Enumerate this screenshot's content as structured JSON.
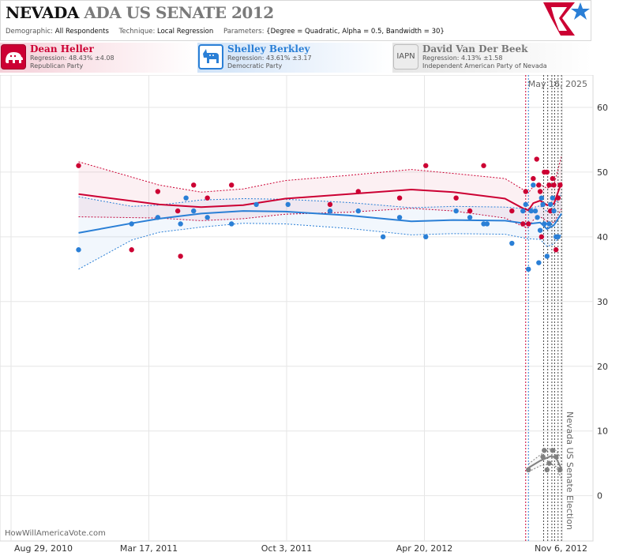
{
  "header": {
    "state": "NEVADA",
    "title_rest": "ADA US SENATE 2012",
    "demographic_label": "Demographic:",
    "demographic": "All Respondents",
    "technique_label": "Technique:",
    "technique": "Local Regression",
    "parameters_label": "Parameters:",
    "parameters": "{Degree = Quadratic, Alpha = 0.5, Bandwidth = 30}"
  },
  "candidates": [
    {
      "name": "Dean Heller",
      "regression": "Regression: 48.43% ±4.08",
      "party": "Republican Party",
      "icon": "elephant-icon",
      "color": "#cc0033"
    },
    {
      "name": "Shelley Berkley",
      "regression": "Regression: 43.61% ±3.17",
      "party": "Democratic Party",
      "icon": "donkey-icon",
      "color": "#2a7fd6"
    },
    {
      "name": "David Van Der Beek",
      "regression": "Regression: 4.13% ±1.58",
      "party": "Independent American Party  of Nevada",
      "icon": "IAPN",
      "color": "#808080"
    }
  ],
  "chart_data": {
    "type": "scatter",
    "date_label": "May 16, 2025",
    "watermark": "HowWillAmericaVote.com",
    "event_label": "Nevada US Senate Election",
    "x_ticks": [
      "Aug 29, 2010",
      "Mar 17, 2011",
      "Oct 3, 2011",
      "Apr 20, 2012",
      "Nov 6, 2012"
    ],
    "xlim": [
      "2010-08-29",
      "2012-11-06"
    ],
    "ylim": [
      -7,
      65
    ],
    "y_ticks": [
      0,
      10,
      20,
      30,
      40,
      50,
      60
    ],
    "grid": true,
    "vertical_markers": [
      "2012-09-14",
      "2012-09-18",
      "2012-10-10",
      "2012-10-16",
      "2012-10-22",
      "2012-10-26",
      "2012-10-31",
      "2012-11-05"
    ],
    "series": [
      {
        "name": "Dean Heller",
        "color": "#cc0033",
        "points": [
          [
            "2010-12-05",
            51
          ],
          [
            "2011-02-20",
            38
          ],
          [
            "2011-03-30",
            47
          ],
          [
            "2011-04-28",
            44
          ],
          [
            "2011-05-02",
            37
          ],
          [
            "2011-05-21",
            48
          ],
          [
            "2011-06-10",
            46
          ],
          [
            "2011-07-15",
            48
          ],
          [
            "2011-12-05",
            45
          ],
          [
            "2012-01-15",
            47
          ],
          [
            "2012-03-15",
            46
          ],
          [
            "2012-04-22",
            51
          ],
          [
            "2012-06-05",
            46
          ],
          [
            "2012-06-25",
            44
          ],
          [
            "2012-07-15",
            51
          ],
          [
            "2012-08-25",
            44
          ],
          [
            "2012-09-10",
            42
          ],
          [
            "2012-09-14",
            47
          ],
          [
            "2012-09-18",
            42
          ],
          [
            "2012-09-25",
            49
          ],
          [
            "2012-09-30",
            52
          ],
          [
            "2012-10-03",
            48
          ],
          [
            "2012-10-05",
            47
          ],
          [
            "2012-10-07",
            40
          ],
          [
            "2012-10-09",
            45
          ],
          [
            "2012-10-11",
            50
          ],
          [
            "2012-10-15",
            50
          ],
          [
            "2012-10-18",
            48
          ],
          [
            "2012-10-20",
            44
          ],
          [
            "2012-10-23",
            49
          ],
          [
            "2012-10-25",
            48
          ],
          [
            "2012-10-28",
            38
          ],
          [
            "2012-10-31",
            46
          ],
          [
            "2012-11-03",
            48
          ]
        ],
        "regression": [
          [
            "2010-12-05",
            46.6
          ],
          [
            "2011-04-01",
            45.0
          ],
          [
            "2011-06-01",
            44.6
          ],
          [
            "2011-08-01",
            44.9
          ],
          [
            "2011-10-01",
            45.9
          ],
          [
            "2012-01-01",
            46.6
          ],
          [
            "2012-04-01",
            47.3
          ],
          [
            "2012-06-01",
            46.9
          ],
          [
            "2012-08-15",
            45.9
          ],
          [
            "2012-09-10",
            44.4
          ],
          [
            "2012-09-18",
            44.1
          ],
          [
            "2012-09-25",
            45.2
          ],
          [
            "2012-10-05",
            45.6
          ],
          [
            "2012-10-15",
            44.9
          ],
          [
            "2012-10-25",
            45.1
          ],
          [
            "2012-11-05",
            48.4
          ]
        ],
        "band_upper": [
          [
            "2010-12-05",
            51.6
          ],
          [
            "2011-04-01",
            48.0
          ],
          [
            "2011-06-01",
            46.9
          ],
          [
            "2011-08-01",
            47.4
          ],
          [
            "2011-10-01",
            48.7
          ],
          [
            "2012-01-01",
            49.5
          ],
          [
            "2012-04-01",
            50.4
          ],
          [
            "2012-06-01",
            49.8
          ],
          [
            "2012-08-15",
            49.0
          ],
          [
            "2012-09-10",
            47.3
          ],
          [
            "2012-09-18",
            46.8
          ],
          [
            "2012-09-25",
            47.8
          ],
          [
            "2012-10-05",
            48.1
          ],
          [
            "2012-10-15",
            47.5
          ],
          [
            "2012-10-25",
            48.0
          ],
          [
            "2012-11-05",
            52.5
          ]
        ],
        "band_lower": [
          [
            "2010-12-05",
            43.1
          ],
          [
            "2011-04-01",
            42.9
          ],
          [
            "2011-06-01",
            42.5
          ],
          [
            "2011-08-01",
            42.8
          ],
          [
            "2011-10-01",
            43.5
          ],
          [
            "2012-01-01",
            43.8
          ],
          [
            "2012-04-01",
            44.4
          ],
          [
            "2012-06-01",
            44.0
          ],
          [
            "2012-08-15",
            42.9
          ],
          [
            "2012-09-10",
            41.6
          ],
          [
            "2012-09-18",
            41.4
          ],
          [
            "2012-09-25",
            42.6
          ],
          [
            "2012-10-05",
            43.1
          ],
          [
            "2012-10-15",
            42.4
          ],
          [
            "2012-10-25",
            42.2
          ],
          [
            "2012-11-05",
            44.3
          ]
        ]
      },
      {
        "name": "Shelley Berkley",
        "color": "#2a7fd6",
        "points": [
          [
            "2010-12-05",
            38
          ],
          [
            "2011-02-20",
            42
          ],
          [
            "2011-03-30",
            43
          ],
          [
            "2011-05-02",
            42
          ],
          [
            "2011-05-10",
            46
          ],
          [
            "2011-05-21",
            44
          ],
          [
            "2011-06-10",
            43
          ],
          [
            "2011-07-15",
            42
          ],
          [
            "2011-08-20",
            45
          ],
          [
            "2011-10-05",
            45
          ],
          [
            "2011-12-05",
            44
          ],
          [
            "2012-01-15",
            44
          ],
          [
            "2012-02-20",
            40
          ],
          [
            "2012-03-15",
            43
          ],
          [
            "2012-04-22",
            40
          ],
          [
            "2012-06-05",
            44
          ],
          [
            "2012-06-25",
            43
          ],
          [
            "2012-07-15",
            42
          ],
          [
            "2012-07-20",
            42
          ],
          [
            "2012-08-25",
            39
          ],
          [
            "2012-09-10",
            44
          ],
          [
            "2012-09-14",
            45
          ],
          [
            "2012-09-18",
            35
          ],
          [
            "2012-09-22",
            44
          ],
          [
            "2012-09-25",
            48
          ],
          [
            "2012-09-28",
            44
          ],
          [
            "2012-10-01",
            43
          ],
          [
            "2012-10-03",
            36
          ],
          [
            "2012-10-05",
            41
          ],
          [
            "2012-10-07",
            46
          ],
          [
            "2012-10-09",
            45
          ],
          [
            "2012-10-11",
            42
          ],
          [
            "2012-10-15",
            37
          ],
          [
            "2012-10-18",
            42
          ],
          [
            "2012-10-20",
            45
          ],
          [
            "2012-10-23",
            46
          ],
          [
            "2012-10-25",
            44
          ],
          [
            "2012-10-28",
            40
          ],
          [
            "2012-10-31",
            40
          ]
        ],
        "regression": [
          [
            "2010-12-05",
            40.6
          ],
          [
            "2011-02-20",
            42.1
          ],
          [
            "2011-04-01",
            42.8
          ],
          [
            "2011-06-01",
            43.6
          ],
          [
            "2011-08-01",
            44.0
          ],
          [
            "2011-10-01",
            43.9
          ],
          [
            "2012-01-01",
            43.3
          ],
          [
            "2012-04-01",
            42.4
          ],
          [
            "2012-06-01",
            42.6
          ],
          [
            "2012-08-15",
            42.5
          ],
          [
            "2012-09-18",
            42.0
          ],
          [
            "2012-10-05",
            42.2
          ],
          [
            "2012-10-15",
            41.2
          ],
          [
            "2012-10-25",
            41.8
          ],
          [
            "2012-11-05",
            43.6
          ]
        ],
        "band_upper": [
          [
            "2010-12-05",
            46.2
          ],
          [
            "2011-02-20",
            44.7
          ],
          [
            "2011-04-01",
            44.9
          ],
          [
            "2011-06-01",
            45.7
          ],
          [
            "2011-08-01",
            45.9
          ],
          [
            "2011-10-01",
            45.8
          ],
          [
            "2012-01-01",
            45.3
          ],
          [
            "2012-04-01",
            44.5
          ],
          [
            "2012-06-01",
            44.7
          ],
          [
            "2012-08-15",
            44.6
          ],
          [
            "2012-09-18",
            44.3
          ],
          [
            "2012-10-05",
            44.8
          ],
          [
            "2012-10-15",
            43.9
          ],
          [
            "2012-10-25",
            44.7
          ],
          [
            "2012-11-05",
            46.8
          ]
        ],
        "band_lower": [
          [
            "2010-12-05",
            35.0
          ],
          [
            "2011-02-20",
            39.5
          ],
          [
            "2011-04-01",
            40.7
          ],
          [
            "2011-06-01",
            41.5
          ],
          [
            "2011-08-01",
            42.1
          ],
          [
            "2011-10-01",
            42.0
          ],
          [
            "2012-01-01",
            41.3
          ],
          [
            "2012-04-01",
            40.3
          ],
          [
            "2012-06-01",
            40.5
          ],
          [
            "2012-08-15",
            40.4
          ],
          [
            "2012-09-18",
            39.7
          ],
          [
            "2012-10-05",
            39.6
          ],
          [
            "2012-10-15",
            38.5
          ],
          [
            "2012-10-25",
            38.9
          ],
          [
            "2012-11-05",
            40.4
          ]
        ]
      },
      {
        "name": "David Van Der Beek",
        "color": "#808080",
        "points": [
          [
            "2012-09-18",
            4
          ],
          [
            "2012-10-09",
            6
          ],
          [
            "2012-10-11",
            7
          ],
          [
            "2012-10-15",
            4
          ],
          [
            "2012-10-18",
            5
          ],
          [
            "2012-10-23",
            7
          ],
          [
            "2012-10-28",
            6
          ],
          [
            "2012-11-03",
            4
          ]
        ],
        "regression": [
          [
            "2012-09-18",
            4.3
          ],
          [
            "2012-10-05",
            5.4
          ],
          [
            "2012-10-20",
            6.1
          ],
          [
            "2012-10-28",
            5.9
          ],
          [
            "2012-11-05",
            4.1
          ]
        ],
        "band_upper": [
          [
            "2012-09-18",
            4.9
          ],
          [
            "2012-10-05",
            6.3
          ],
          [
            "2012-10-20",
            7.3
          ],
          [
            "2012-10-28",
            7.0
          ],
          [
            "2012-11-05",
            5.7
          ]
        ],
        "band_lower": [
          [
            "2012-09-18",
            3.7
          ],
          [
            "2012-10-05",
            4.6
          ],
          [
            "2012-10-20",
            4.9
          ],
          [
            "2012-10-28",
            4.5
          ],
          [
            "2012-11-05",
            2.6
          ]
        ]
      }
    ]
  }
}
